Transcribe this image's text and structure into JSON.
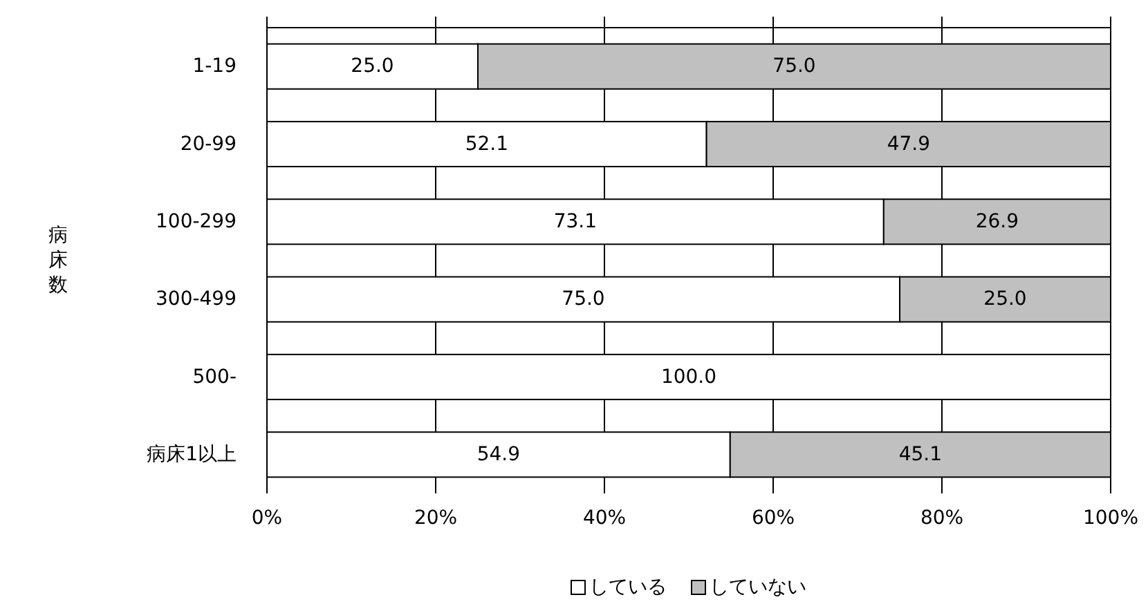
{
  "chart_data": {
    "type": "bar",
    "orientation": "horizontal",
    "stacked": true,
    "ylabel": "病床数",
    "categories": [
      "1-19",
      "20-99",
      "100-299",
      "300-499",
      "500-",
      "病床1以上"
    ],
    "series": [
      {
        "name": "している",
        "color": "#ffffff",
        "values": [
          25.0,
          52.1,
          73.1,
          75.0,
          100.0,
          54.9
        ],
        "value_labels": [
          "25.0",
          "52.1",
          "73.1",
          "75.0",
          "100.0",
          "54.9"
        ]
      },
      {
        "name": "していない",
        "color": "#c0c0c0",
        "values": [
          75.0,
          47.9,
          26.9,
          25.0,
          0,
          45.1
        ],
        "value_labels": [
          "75.0",
          "47.9",
          "26.9",
          "25.0",
          null,
          "45.1"
        ]
      }
    ],
    "xlim": [
      0,
      100
    ],
    "xticks": [
      {
        "value": 0,
        "label": "0%"
      },
      {
        "value": 20,
        "label": "20%"
      },
      {
        "value": 40,
        "label": "40%"
      },
      {
        "value": 60,
        "label": "60%"
      },
      {
        "value": 80,
        "label": "80%"
      },
      {
        "value": 100,
        "label": "100%"
      }
    ],
    "grid": "x",
    "legend": "bottom"
  }
}
